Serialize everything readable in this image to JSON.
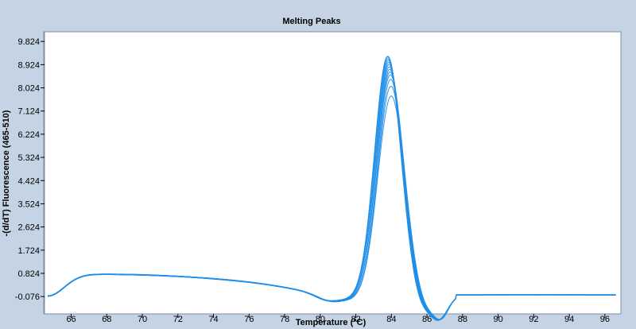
{
  "chart_data": {
    "type": "line",
    "title": "Melting Peaks",
    "xlabel": "Temperature (°C)",
    "ylabel": "-(d/dT) Fluorescence (465-510)",
    "xlim": [
      64.5,
      96.9
    ],
    "ylim": [
      -0.75,
      10.2
    ],
    "x_ticks": [
      66,
      68,
      70,
      72,
      74,
      76,
      78,
      80,
      82,
      84,
      86,
      88,
      90,
      92,
      94,
      96
    ],
    "y_ticks": [
      -0.076,
      0.824,
      1.724,
      2.624,
      3.524,
      4.424,
      5.324,
      6.224,
      7.124,
      8.024,
      8.924,
      9.824
    ],
    "grid": false,
    "legend": "none",
    "line_color": "#1f8ee8",
    "peak_temperature": 83.9,
    "series_peak_heights": [
      9.7,
      9.62,
      9.54,
      9.46,
      9.38,
      9.3,
      9.22,
      9.12,
      9.0,
      8.82,
      8.55,
      8.18
    ]
  }
}
